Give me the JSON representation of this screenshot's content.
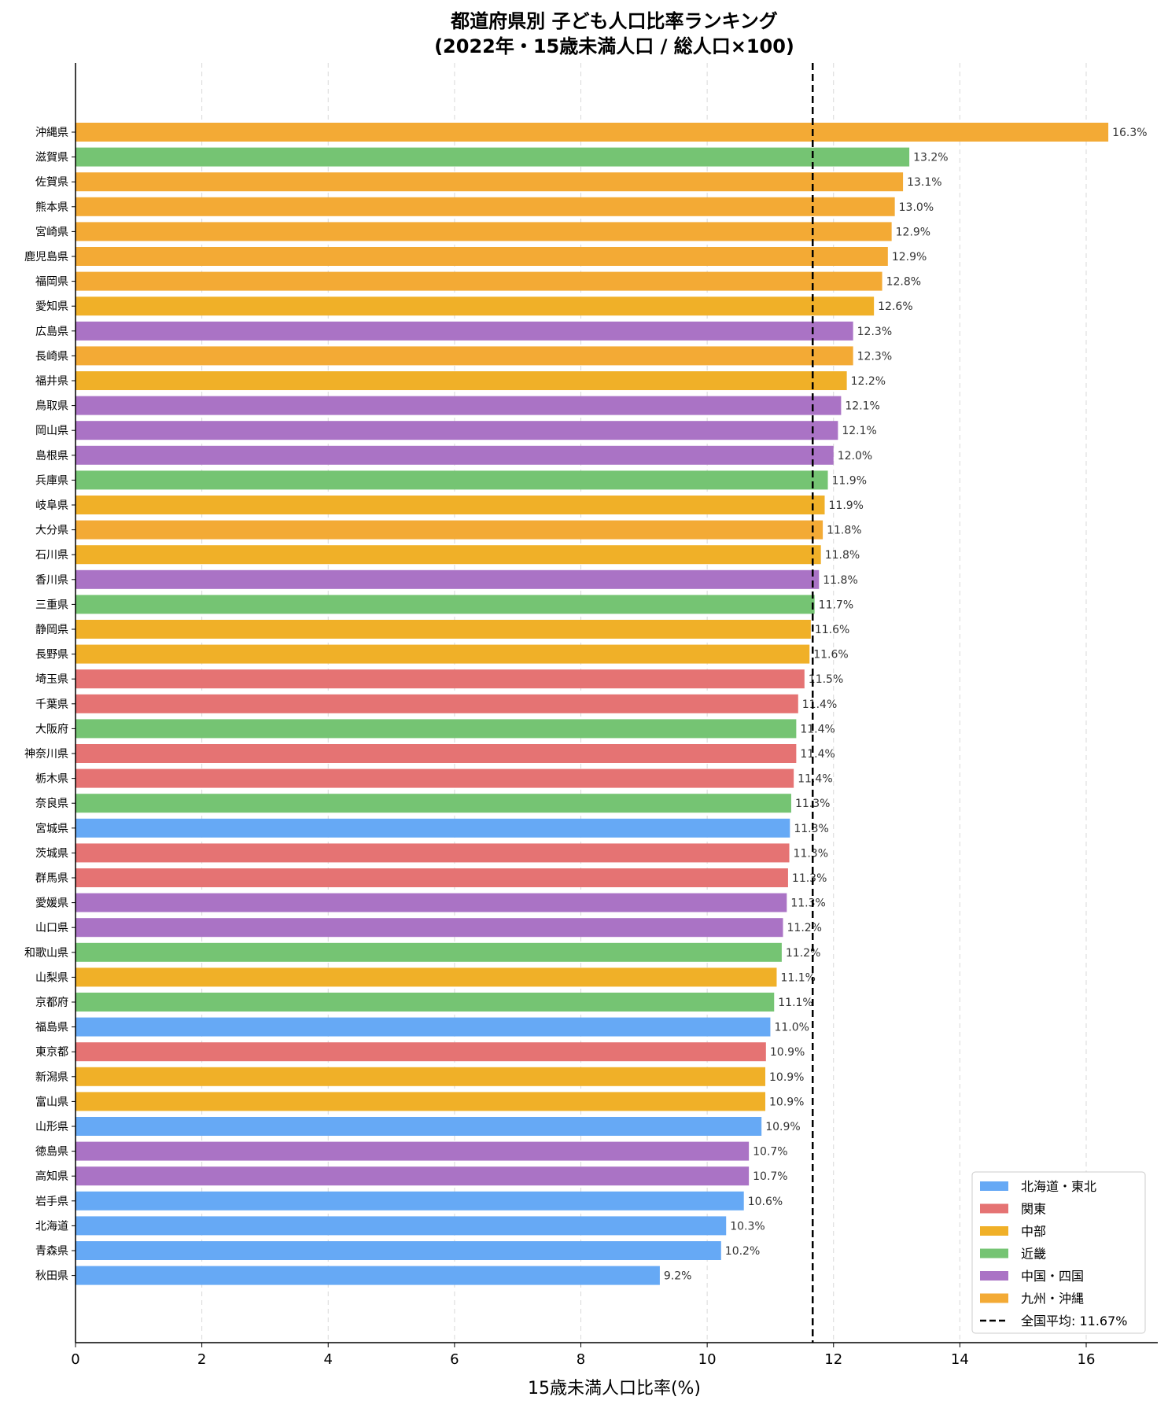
{
  "chart_data": {
    "type": "bar",
    "orientation": "horizontal",
    "title": "都道府県別 子ども人口比率ランキング",
    "subtitle": "(2022年・15歳未満人口 / 総人口×100)",
    "xlabel": "15歳未満人口比率(%)",
    "ylabel": "",
    "xlim": [
      0,
      17.2
    ],
    "xticks": [
      0,
      2,
      4,
      6,
      8,
      10,
      12,
      14,
      16
    ],
    "grid": "x-dashed",
    "legend_position": "bottom-right",
    "value_suffix": "%",
    "regions": [
      {
        "key": "hokkaido_tohoku",
        "name": "北海道・東北",
        "color": "#66a9f5"
      },
      {
        "key": "kanto",
        "name": "関東",
        "color": "#e57373"
      },
      {
        "key": "chubu",
        "name": "中部",
        "color": "#f0b028"
      },
      {
        "key": "kinki",
        "name": "近畿",
        "color": "#75c473"
      },
      {
        "key": "chugoku_shikoku",
        "name": "中国・四国",
        "color": "#aa73c5"
      },
      {
        "key": "kyushu_okinawa",
        "name": "九州・沖縄",
        "color": "#f3aa35"
      }
    ],
    "reference_line": {
      "label": "全国平均: 11.67%",
      "value": 11.67,
      "style": "dashed",
      "color": "#000000"
    },
    "bars": [
      {
        "label": "沖縄県",
        "value": 16.35,
        "value_label": "16.3%",
        "region": "kyushu_okinawa"
      },
      {
        "label": "滋賀県",
        "value": 13.2,
        "value_label": "13.2%",
        "region": "kinki"
      },
      {
        "label": "佐賀県",
        "value": 13.1,
        "value_label": "13.1%",
        "region": "kyushu_okinawa"
      },
      {
        "label": "熊本県",
        "value": 12.97,
        "value_label": "13.0%",
        "region": "kyushu_okinawa"
      },
      {
        "label": "宮崎県",
        "value": 12.92,
        "value_label": "12.9%",
        "region": "kyushu_okinawa"
      },
      {
        "label": "鹿児島県",
        "value": 12.86,
        "value_label": "12.9%",
        "region": "kyushu_okinawa"
      },
      {
        "label": "福岡県",
        "value": 12.77,
        "value_label": "12.8%",
        "region": "kyushu_okinawa"
      },
      {
        "label": "愛知県",
        "value": 12.64,
        "value_label": "12.6%",
        "region": "chubu"
      },
      {
        "label": "広島県",
        "value": 12.31,
        "value_label": "12.3%",
        "region": "chugoku_shikoku"
      },
      {
        "label": "長崎県",
        "value": 12.31,
        "value_label": "12.3%",
        "region": "kyushu_okinawa"
      },
      {
        "label": "福井県",
        "value": 12.21,
        "value_label": "12.2%",
        "region": "chubu"
      },
      {
        "label": "鳥取県",
        "value": 12.12,
        "value_label": "12.1%",
        "region": "chugoku_shikoku"
      },
      {
        "label": "岡山県",
        "value": 12.07,
        "value_label": "12.1%",
        "region": "chugoku_shikoku"
      },
      {
        "label": "島根県",
        "value": 12.0,
        "value_label": "12.0%",
        "region": "chugoku_shikoku"
      },
      {
        "label": "兵庫県",
        "value": 11.91,
        "value_label": "11.9%",
        "region": "kinki"
      },
      {
        "label": "岐阜県",
        "value": 11.86,
        "value_label": "11.9%",
        "region": "chubu"
      },
      {
        "label": "大分県",
        "value": 11.83,
        "value_label": "11.8%",
        "region": "kyushu_okinawa"
      },
      {
        "label": "石川県",
        "value": 11.8,
        "value_label": "11.8%",
        "region": "chubu"
      },
      {
        "label": "香川県",
        "value": 11.77,
        "value_label": "11.8%",
        "region": "chugoku_shikoku"
      },
      {
        "label": "三重県",
        "value": 11.7,
        "value_label": "11.7%",
        "region": "kinki"
      },
      {
        "label": "静岡県",
        "value": 11.64,
        "value_label": "11.6%",
        "region": "chubu"
      },
      {
        "label": "長野県",
        "value": 11.62,
        "value_label": "11.6%",
        "region": "chubu"
      },
      {
        "label": "埼玉県",
        "value": 11.54,
        "value_label": "11.5%",
        "region": "kanto"
      },
      {
        "label": "千葉県",
        "value": 11.44,
        "value_label": "11.4%",
        "region": "kanto"
      },
      {
        "label": "大阪府",
        "value": 11.41,
        "value_label": "11.4%",
        "region": "kinki"
      },
      {
        "label": "神奈川県",
        "value": 11.41,
        "value_label": "11.4%",
        "region": "kanto"
      },
      {
        "label": "栃木県",
        "value": 11.37,
        "value_label": "11.4%",
        "region": "kanto"
      },
      {
        "label": "奈良県",
        "value": 11.33,
        "value_label": "11.3%",
        "region": "kinki"
      },
      {
        "label": "宮城県",
        "value": 11.31,
        "value_label": "11.3%",
        "region": "hokkaido_tohoku"
      },
      {
        "label": "茨城県",
        "value": 11.3,
        "value_label": "11.3%",
        "region": "kanto"
      },
      {
        "label": "群馬県",
        "value": 11.28,
        "value_label": "11.3%",
        "region": "kanto"
      },
      {
        "label": "愛媛県",
        "value": 11.26,
        "value_label": "11.3%",
        "region": "chugoku_shikoku"
      },
      {
        "label": "山口県",
        "value": 11.2,
        "value_label": "11.2%",
        "region": "chugoku_shikoku"
      },
      {
        "label": "和歌山県",
        "value": 11.18,
        "value_label": "11.2%",
        "region": "kinki"
      },
      {
        "label": "山梨県",
        "value": 11.1,
        "value_label": "11.1%",
        "region": "chubu"
      },
      {
        "label": "京都府",
        "value": 11.06,
        "value_label": "11.1%",
        "region": "kinki"
      },
      {
        "label": "福島県",
        "value": 11.0,
        "value_label": "11.0%",
        "region": "hokkaido_tohoku"
      },
      {
        "label": "東京都",
        "value": 10.93,
        "value_label": "10.9%",
        "region": "kanto"
      },
      {
        "label": "新潟県",
        "value": 10.92,
        "value_label": "10.9%",
        "region": "chubu"
      },
      {
        "label": "富山県",
        "value": 10.92,
        "value_label": "10.9%",
        "region": "chubu"
      },
      {
        "label": "山形県",
        "value": 10.86,
        "value_label": "10.9%",
        "region": "hokkaido_tohoku"
      },
      {
        "label": "徳島県",
        "value": 10.66,
        "value_label": "10.7%",
        "region": "chugoku_shikoku"
      },
      {
        "label": "高知県",
        "value": 10.66,
        "value_label": "10.7%",
        "region": "chugoku_shikoku"
      },
      {
        "label": "岩手県",
        "value": 10.58,
        "value_label": "10.6%",
        "region": "hokkaido_tohoku"
      },
      {
        "label": "北海道",
        "value": 10.3,
        "value_label": "10.3%",
        "region": "hokkaido_tohoku"
      },
      {
        "label": "青森県",
        "value": 10.22,
        "value_label": "10.2%",
        "region": "hokkaido_tohoku"
      },
      {
        "label": "秋田県",
        "value": 9.25,
        "value_label": "9.2%",
        "region": "hokkaido_tohoku"
      }
    ]
  }
}
